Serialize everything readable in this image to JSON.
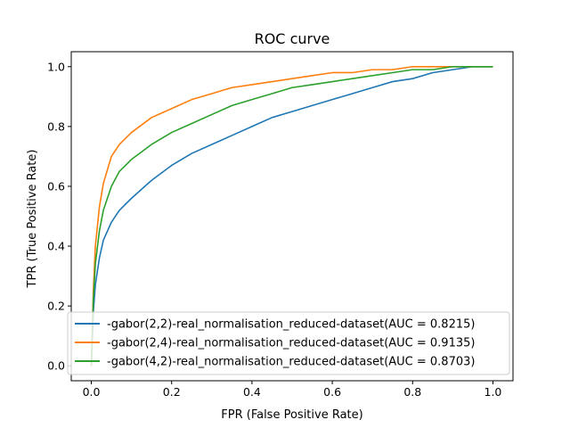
{
  "chart_data": {
    "type": "line",
    "title": "ROC curve",
    "xlabel": "FPR (False Positive Rate)",
    "ylabel": "TPR (True Positive Rate)",
    "xlim": [
      -0.05,
      1.05
    ],
    "ylim": [
      -0.05,
      1.05
    ],
    "xticks": [
      "0.0",
      "0.2",
      "0.4",
      "0.6",
      "0.8",
      "1.0"
    ],
    "yticks": [
      "0.0",
      "0.2",
      "0.4",
      "0.6",
      "0.8",
      "1.0"
    ],
    "grid": false,
    "legend_position": "lower-right",
    "series": [
      {
        "name": "-gabor(2,2)-real_normalisation_reduced-dataset(AUC = 0.8215)",
        "color": "#1f77b4",
        "x": [
          0.0,
          0.005,
          0.01,
          0.02,
          0.03,
          0.05,
          0.07,
          0.1,
          0.15,
          0.2,
          0.25,
          0.3,
          0.35,
          0.4,
          0.45,
          0.5,
          0.55,
          0.6,
          0.65,
          0.7,
          0.75,
          0.8,
          0.85,
          0.9,
          0.95,
          1.0
        ],
        "y": [
          0.0,
          0.18,
          0.27,
          0.36,
          0.42,
          0.48,
          0.52,
          0.56,
          0.62,
          0.67,
          0.71,
          0.74,
          0.77,
          0.8,
          0.83,
          0.85,
          0.87,
          0.89,
          0.91,
          0.93,
          0.95,
          0.96,
          0.98,
          0.99,
          1.0,
          1.0
        ]
      },
      {
        "name": "-gabor(2,4)-real_normalisation_reduced-dataset(AUC = 0.9135)",
        "color": "#ff7f0e",
        "x": [
          0.0,
          0.005,
          0.01,
          0.02,
          0.03,
          0.05,
          0.07,
          0.1,
          0.15,
          0.2,
          0.25,
          0.3,
          0.35,
          0.4,
          0.45,
          0.5,
          0.55,
          0.6,
          0.65,
          0.7,
          0.75,
          0.8,
          0.85,
          0.9,
          0.95,
          1.0
        ],
        "y": [
          0.0,
          0.25,
          0.4,
          0.53,
          0.61,
          0.7,
          0.74,
          0.78,
          0.83,
          0.86,
          0.89,
          0.91,
          0.93,
          0.94,
          0.95,
          0.96,
          0.97,
          0.98,
          0.98,
          0.99,
          0.99,
          1.0,
          1.0,
          1.0,
          1.0,
          1.0
        ]
      },
      {
        "name": "-gabor(4,2)-real_normalisation_reduced-dataset(AUC = 0.8703)",
        "color": "#2ca02c",
        "x": [
          0.0,
          0.005,
          0.01,
          0.02,
          0.03,
          0.05,
          0.07,
          0.1,
          0.15,
          0.2,
          0.25,
          0.3,
          0.35,
          0.4,
          0.45,
          0.5,
          0.55,
          0.6,
          0.65,
          0.7,
          0.75,
          0.8,
          0.85,
          0.9,
          0.95,
          1.0
        ],
        "y": [
          0.0,
          0.22,
          0.34,
          0.45,
          0.52,
          0.6,
          0.65,
          0.69,
          0.74,
          0.78,
          0.81,
          0.84,
          0.87,
          0.89,
          0.91,
          0.93,
          0.94,
          0.95,
          0.96,
          0.97,
          0.98,
          0.99,
          0.99,
          1.0,
          1.0,
          1.0
        ]
      }
    ]
  }
}
